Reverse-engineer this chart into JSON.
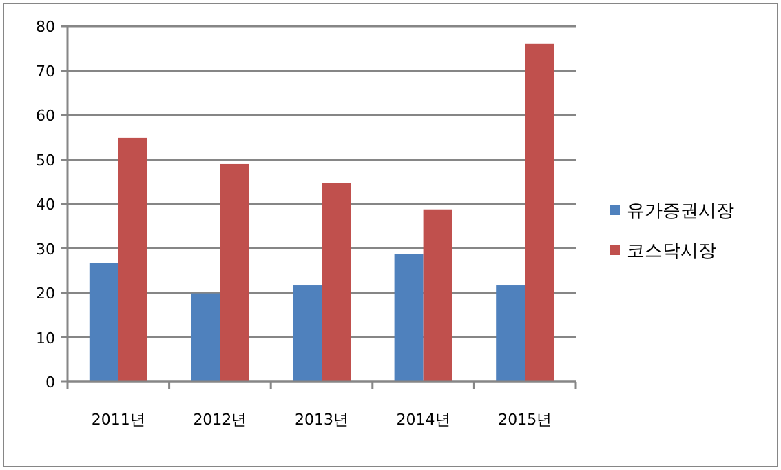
{
  "chart_data": {
    "type": "bar",
    "categories": [
      "2011년",
      "2012년",
      "2013년",
      "2014년",
      "2015년"
    ],
    "series": [
      {
        "name": "유가증권시장",
        "color": "#4f81bd",
        "values": [
          26.7,
          19.9,
          21.7,
          28.8,
          21.7
        ]
      },
      {
        "name": "코스닥시장",
        "color": "#c0504d",
        "values": [
          54.9,
          49.0,
          44.7,
          38.8,
          76.0
        ]
      }
    ],
    "ylim": [
      0,
      80
    ],
    "yticks": [
      0,
      10,
      20,
      30,
      40,
      50,
      60,
      70,
      80
    ],
    "grid": "y",
    "legend": "right"
  }
}
